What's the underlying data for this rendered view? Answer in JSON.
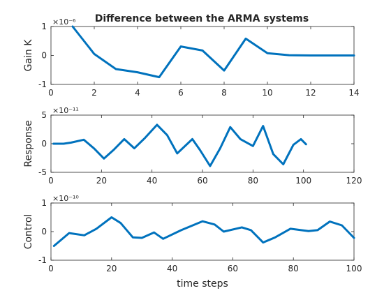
{
  "figure": {
    "title": "Difference between the ARMA systems",
    "line_color": "#0072BD",
    "axis_color": "#262626"
  },
  "chart_data": [
    {
      "type": "line",
      "title": "Difference between the ARMA systems",
      "ylabel": "Gain K",
      "xlabel": "",
      "xlim": [
        0,
        14
      ],
      "ylim": [
        -1,
        1
      ],
      "xticks": [
        "0",
        "2",
        "4",
        "6",
        "8",
        "10",
        "12",
        "14"
      ],
      "yticks": [
        "-1",
        "0",
        "1"
      ],
      "exponent": "×10⁻⁶",
      "grid": false,
      "series": [
        {
          "x": [
            1,
            2,
            3,
            4,
            5,
            6,
            7,
            8,
            9,
            10,
            11,
            12,
            13,
            14
          ],
          "y": [
            1.0,
            0.05,
            -0.47,
            -0.58,
            -0.75,
            0.31,
            0.17,
            -0.52,
            0.58,
            0.08,
            0.01,
            0.0,
            0.0,
            0.0
          ]
        }
      ]
    },
    {
      "type": "line",
      "ylabel": "Response",
      "xlabel": "",
      "xlim": [
        0,
        120
      ],
      "ylim": [
        -5,
        5
      ],
      "xticks": [
        "0",
        "20",
        "40",
        "60",
        "80",
        "100",
        "120"
      ],
      "yticks": [
        "-5",
        "0",
        "5"
      ],
      "exponent": "×10⁻¹¹",
      "grid": false,
      "series": [
        {
          "x": [
            1,
            5,
            8,
            13,
            17,
            21,
            25,
            29,
            33,
            37,
            42,
            46,
            50,
            56,
            59,
            63,
            67,
            71,
            75,
            80,
            84,
            88,
            92,
            96,
            99,
            101
          ],
          "y": [
            0,
            0,
            0.2,
            0.7,
            -0.8,
            -2.6,
            -1.0,
            0.8,
            -0.8,
            0.9,
            3.3,
            1.5,
            -1.7,
            0.8,
            -1.1,
            -3.9,
            -0.8,
            2.9,
            0.8,
            -0.4,
            3.1,
            -1.8,
            -3.6,
            -0.2,
            0.8,
            -0.1
          ]
        }
      ]
    },
    {
      "type": "line",
      "ylabel": "Control",
      "xlabel": "time steps",
      "xlim": [
        0,
        100
      ],
      "ylim": [
        -1,
        1
      ],
      "xticks": [
        "0",
        "20",
        "40",
        "60",
        "80",
        "100"
      ],
      "yticks": [
        "-1",
        "0",
        "1"
      ],
      "exponent": "×10⁻¹⁰",
      "grid": false,
      "series": [
        {
          "x": [
            1,
            6,
            11,
            15,
            20,
            23,
            27,
            30,
            34,
            37,
            43,
            50,
            54,
            57,
            63,
            66,
            70,
            74,
            79,
            85,
            88,
            92,
            96,
            100
          ],
          "y": [
            -0.5,
            -0.05,
            -0.13,
            0.1,
            0.5,
            0.3,
            -0.2,
            -0.22,
            -0.03,
            -0.25,
            0.05,
            0.36,
            0.25,
            0.0,
            0.15,
            0.05,
            -0.38,
            -0.2,
            0.1,
            0.02,
            0.05,
            0.35,
            0.22,
            -0.22
          ]
        }
      ]
    }
  ]
}
